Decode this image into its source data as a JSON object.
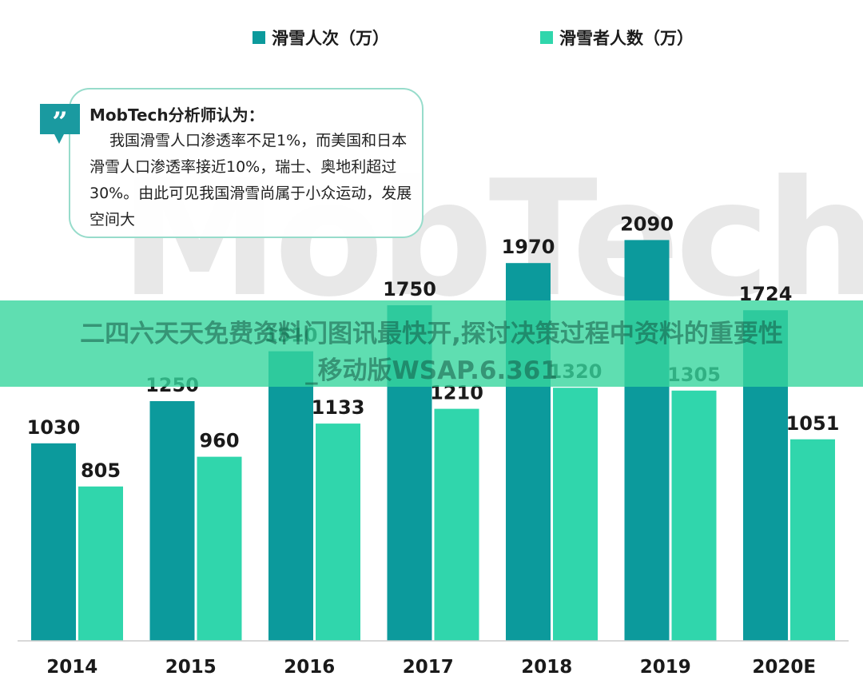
{
  "watermark": {
    "text": "MobTech 袤博"
  },
  "colors": {
    "series1": "#0c9a9c",
    "series2": "#30d6ac",
    "axis": "#cccccc",
    "callout_border": "#97dccb",
    "quote_icon": "#1a9aa0"
  },
  "callout": {
    "title": "MobTech分析师认为：",
    "body": "我国滑雪人口渗透率不足1%，而美国和日本滑雪人口渗透率接近10%，瑞士、奥地利超过30%。由此可见我国滑雪尚属于小众运动，发展空间大",
    "icon": "quote-icon"
  },
  "banner": {
    "line1": "二四六天天免费资料门图讯最快开,探讨决策过程中资料的重要性",
    "line2": "_移动版WSAP.6.361"
  },
  "chart_data": {
    "type": "bar",
    "categories": [
      "2014",
      "2015",
      "2016",
      "2017",
      "2018",
      "2019",
      "2020E"
    ],
    "series": [
      {
        "name": "滑雪人次（万）",
        "values": [
          1030,
          1250,
          1510,
          1750,
          1970,
          2090,
          1724
        ]
      },
      {
        "name": "滑雪者人数（万）",
        "values": [
          805,
          960,
          1133,
          1210,
          1320,
          1305,
          1051
        ]
      }
    ],
    "title": "",
    "xlabel": "",
    "ylabel": "",
    "ylim": [
      0,
      2250
    ],
    "grid": false,
    "legend": "top-center"
  }
}
